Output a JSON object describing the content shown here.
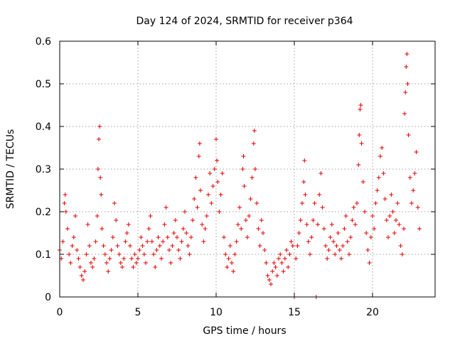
{
  "chart_data": {
    "type": "scatter",
    "title": "Day 124 of 2024, SRMTID for receiver p364",
    "xlabel": "GPS time / hours",
    "ylabel": "SRMTID / TECUs",
    "xlim": [
      0,
      24
    ],
    "ylim": [
      0,
      0.6
    ],
    "xticks": [
      0,
      5,
      10,
      15,
      20
    ],
    "xtick_labels": [
      "0",
      "5",
      "10",
      "15",
      "20"
    ],
    "yticks": [
      0,
      0.1,
      0.2,
      0.3,
      0.4,
      0.5,
      0.6
    ],
    "ytick_labels": [
      "0",
      "0.1",
      "0.2",
      "0.3",
      "0.4",
      "0.5",
      "0.6"
    ],
    "grid": true,
    "marker": "+",
    "color": "#e00000",
    "points": [
      [
        0.0,
        0.11
      ],
      [
        0.1,
        0.09
      ],
      [
        0.2,
        0.13
      ],
      [
        0.3,
        0.22
      ],
      [
        0.35,
        0.24
      ],
      [
        0.4,
        0.2
      ],
      [
        0.5,
        0.16
      ],
      [
        0.6,
        0.1
      ],
      [
        0.7,
        0.08
      ],
      [
        0.8,
        0.12
      ],
      [
        0.9,
        0.14
      ],
      [
        1.0,
        0.19
      ],
      [
        1.1,
        0.11
      ],
      [
        1.2,
        0.09
      ],
      [
        1.3,
        0.07
      ],
      [
        1.4,
        0.05
      ],
      [
        1.5,
        0.04
      ],
      [
        1.6,
        0.06
      ],
      [
        1.7,
        0.1
      ],
      [
        1.8,
        0.17
      ],
      [
        1.9,
        0.12
      ],
      [
        2.0,
        0.08
      ],
      [
        2.1,
        0.07
      ],
      [
        2.2,
        0.09
      ],
      [
        2.3,
        0.13
      ],
      [
        2.4,
        0.19
      ],
      [
        2.45,
        0.3
      ],
      [
        2.5,
        0.37
      ],
      [
        2.55,
        0.4
      ],
      [
        2.6,
        0.28
      ],
      [
        2.65,
        0.24
      ],
      [
        2.7,
        0.16
      ],
      [
        2.8,
        0.12
      ],
      [
        2.9,
        0.1
      ],
      [
        3.0,
        0.08
      ],
      [
        3.1,
        0.06
      ],
      [
        3.2,
        0.09
      ],
      [
        3.3,
        0.11
      ],
      [
        3.4,
        0.14
      ],
      [
        3.5,
        0.22
      ],
      [
        3.6,
        0.18
      ],
      [
        3.7,
        0.12
      ],
      [
        3.8,
        0.1
      ],
      [
        3.9,
        0.08
      ],
      [
        4.0,
        0.07
      ],
      [
        4.1,
        0.09
      ],
      [
        4.2,
        0.13
      ],
      [
        4.3,
        0.15
      ],
      [
        4.4,
        0.17
      ],
      [
        4.5,
        0.12
      ],
      [
        4.6,
        0.09
      ],
      [
        4.7,
        0.07
      ],
      [
        4.8,
        0.1
      ],
      [
        4.9,
        0.08
      ],
      [
        5.0,
        0.09
      ],
      [
        5.1,
        0.11
      ],
      [
        5.2,
        0.14
      ],
      [
        5.3,
        0.12
      ],
      [
        5.4,
        0.1
      ],
      [
        5.5,
        0.08
      ],
      [
        5.6,
        0.13
      ],
      [
        5.7,
        0.16
      ],
      [
        5.8,
        0.19
      ],
      [
        5.9,
        0.13
      ],
      [
        6.0,
        0.1
      ],
      [
        6.1,
        0.07
      ],
      [
        6.2,
        0.11
      ],
      [
        6.3,
        0.14
      ],
      [
        6.4,
        0.12
      ],
      [
        6.5,
        0.09
      ],
      [
        6.6,
        0.13
      ],
      [
        6.7,
        0.17
      ],
      [
        6.8,
        0.21
      ],
      [
        6.9,
        0.14
      ],
      [
        7.0,
        0.11
      ],
      [
        7.1,
        0.08
      ],
      [
        7.2,
        0.12
      ],
      [
        7.3,
        0.15
      ],
      [
        7.4,
        0.18
      ],
      [
        7.5,
        0.14
      ],
      [
        7.6,
        0.11
      ],
      [
        7.7,
        0.09
      ],
      [
        7.8,
        0.13
      ],
      [
        7.9,
        0.16
      ],
      [
        8.0,
        0.2
      ],
      [
        8.1,
        0.15
      ],
      [
        8.2,
        0.12
      ],
      [
        8.3,
        0.1
      ],
      [
        8.4,
        0.14
      ],
      [
        8.5,
        0.18
      ],
      [
        8.6,
        0.23
      ],
      [
        8.7,
        0.28
      ],
      [
        8.8,
        0.21
      ],
      [
        8.9,
        0.33
      ],
      [
        8.95,
        0.36
      ],
      [
        9.0,
        0.25
      ],
      [
        9.1,
        0.17
      ],
      [
        9.2,
        0.13
      ],
      [
        9.3,
        0.16
      ],
      [
        9.4,
        0.19
      ],
      [
        9.5,
        0.24
      ],
      [
        9.6,
        0.29
      ],
      [
        9.7,
        0.22
      ],
      [
        9.8,
        0.26
      ],
      [
        9.9,
        0.3
      ],
      [
        10.0,
        0.37
      ],
      [
        10.05,
        0.32
      ],
      [
        10.1,
        0.27
      ],
      [
        10.2,
        0.2
      ],
      [
        10.3,
        0.24
      ],
      [
        10.4,
        0.29
      ],
      [
        10.5,
        0.14
      ],
      [
        10.6,
        0.1
      ],
      [
        10.7,
        0.07
      ],
      [
        10.8,
        0.09
      ],
      [
        10.9,
        0.12
      ],
      [
        11.0,
        0.08
      ],
      [
        11.1,
        0.06
      ],
      [
        11.2,
        0.1
      ],
      [
        11.3,
        0.13
      ],
      [
        11.4,
        0.17
      ],
      [
        11.5,
        0.21
      ],
      [
        11.6,
        0.16
      ],
      [
        11.7,
        0.3
      ],
      [
        11.75,
        0.33
      ],
      [
        11.8,
        0.26
      ],
      [
        11.9,
        0.18
      ],
      [
        12.0,
        0.14
      ],
      [
        12.1,
        0.19
      ],
      [
        12.2,
        0.23
      ],
      [
        12.3,
        0.28
      ],
      [
        12.4,
        0.36
      ],
      [
        12.45,
        0.39
      ],
      [
        12.5,
        0.3
      ],
      [
        12.6,
        0.22
      ],
      [
        12.7,
        0.16
      ],
      [
        12.8,
        0.12
      ],
      [
        12.9,
        0.18
      ],
      [
        13.0,
        0.15
      ],
      [
        13.1,
        0.11
      ],
      [
        13.2,
        0.08
      ],
      [
        13.3,
        0.05
      ],
      [
        13.4,
        0.04
      ],
      [
        13.5,
        0.03
      ],
      [
        13.6,
        0.06
      ],
      [
        13.7,
        0.08
      ],
      [
        13.8,
        0.07
      ],
      [
        13.9,
        0.05
      ],
      [
        14.0,
        0.09
      ],
      [
        14.1,
        0.1
      ],
      [
        14.2,
        0.08
      ],
      [
        14.3,
        0.06
      ],
      [
        14.4,
        0.09
      ],
      [
        14.5,
        0.11
      ],
      [
        14.6,
        0.07
      ],
      [
        14.7,
        0.1
      ],
      [
        14.8,
        0.13
      ],
      [
        14.9,
        0.12
      ],
      [
        15.0,
        0.0
      ],
      [
        15.1,
        0.09
      ],
      [
        15.2,
        0.12
      ],
      [
        15.3,
        0.15
      ],
      [
        15.4,
        0.18
      ],
      [
        15.5,
        0.22
      ],
      [
        15.6,
        0.27
      ],
      [
        15.65,
        0.32
      ],
      [
        15.7,
        0.24
      ],
      [
        15.8,
        0.17
      ],
      [
        15.9,
        0.13
      ],
      [
        16.0,
        0.1
      ],
      [
        16.1,
        0.14
      ],
      [
        16.2,
        0.18
      ],
      [
        16.3,
        0.22
      ],
      [
        16.4,
        0.0
      ],
      [
        16.5,
        0.17
      ],
      [
        16.6,
        0.24
      ],
      [
        16.7,
        0.29
      ],
      [
        16.8,
        0.21
      ],
      [
        16.9,
        0.16
      ],
      [
        17.0,
        0.12
      ],
      [
        17.1,
        0.09
      ],
      [
        17.2,
        0.11
      ],
      [
        17.3,
        0.14
      ],
      [
        17.4,
        0.17
      ],
      [
        17.5,
        0.13
      ],
      [
        17.6,
        0.1
      ],
      [
        17.7,
        0.12
      ],
      [
        17.8,
        0.15
      ],
      [
        17.9,
        0.11
      ],
      [
        18.0,
        0.09
      ],
      [
        18.1,
        0.12
      ],
      [
        18.2,
        0.16
      ],
      [
        18.3,
        0.19
      ],
      [
        18.4,
        0.13
      ],
      [
        18.5,
        0.1
      ],
      [
        18.6,
        0.14
      ],
      [
        18.7,
        0.18
      ],
      [
        18.8,
        0.21
      ],
      [
        18.9,
        0.17
      ],
      [
        19.0,
        0.22
      ],
      [
        19.1,
        0.31
      ],
      [
        19.15,
        0.38
      ],
      [
        19.2,
        0.44
      ],
      [
        19.25,
        0.45
      ],
      [
        19.3,
        0.36
      ],
      [
        19.4,
        0.27
      ],
      [
        19.5,
        0.2
      ],
      [
        19.6,
        0.15
      ],
      [
        19.7,
        0.11
      ],
      [
        19.8,
        0.08
      ],
      [
        19.9,
        0.14
      ],
      [
        20.0,
        0.19
      ],
      [
        20.1,
        0.16
      ],
      [
        20.2,
        0.22
      ],
      [
        20.3,
        0.25
      ],
      [
        20.4,
        0.28
      ],
      [
        20.5,
        0.33
      ],
      [
        20.6,
        0.35
      ],
      [
        20.7,
        0.29
      ],
      [
        20.8,
        0.23
      ],
      [
        20.9,
        0.18
      ],
      [
        21.0,
        0.14
      ],
      [
        21.1,
        0.19
      ],
      [
        21.2,
        0.24
      ],
      [
        21.3,
        0.2
      ],
      [
        21.4,
        0.15
      ],
      [
        21.5,
        0.18
      ],
      [
        21.6,
        0.22
      ],
      [
        21.7,
        0.17
      ],
      [
        21.8,
        0.12
      ],
      [
        21.9,
        0.1
      ],
      [
        22.0,
        0.16
      ],
      [
        22.05,
        0.43
      ],
      [
        22.1,
        0.48
      ],
      [
        22.15,
        0.54
      ],
      [
        22.2,
        0.57
      ],
      [
        22.25,
        0.5
      ],
      [
        22.3,
        0.38
      ],
      [
        22.4,
        0.28
      ],
      [
        22.5,
        0.22
      ],
      [
        22.6,
        0.25
      ],
      [
        22.7,
        0.29
      ],
      [
        22.8,
        0.34
      ],
      [
        22.9,
        0.21
      ],
      [
        23.0,
        0.16
      ]
    ]
  }
}
